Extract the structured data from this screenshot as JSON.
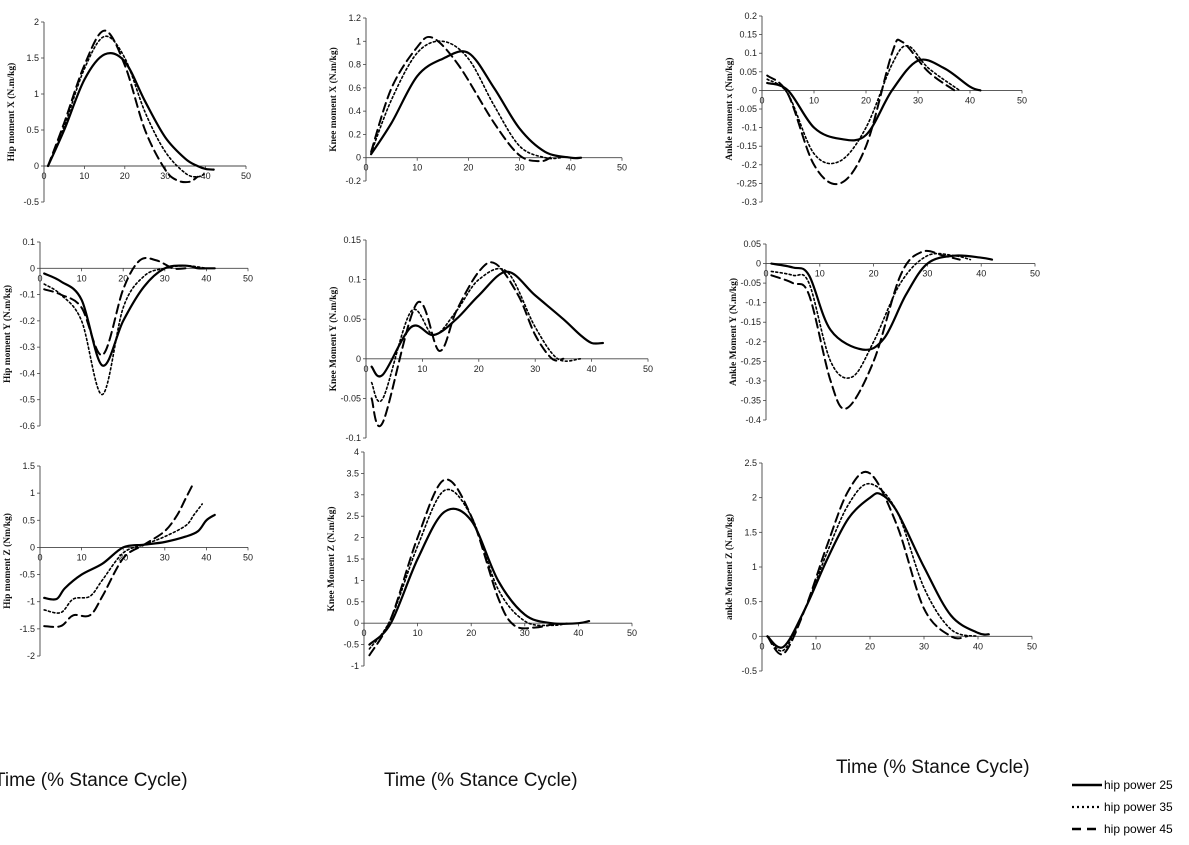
{
  "x_caption": "Time (% Stance Cycle)",
  "legend": {
    "items": [
      {
        "label": "hip power 25",
        "style": "solid"
      },
      {
        "label": "hip power 35",
        "style": "dotted"
      },
      {
        "label": "hip power 45",
        "style": "dashed"
      }
    ]
  },
  "chart_data": [
    {
      "type": "line",
      "ylabel": "Hip moment X (N.m/kg)",
      "xlim": [
        0,
        50
      ],
      "xticks": [
        0,
        10,
        20,
        30,
        40,
        50
      ],
      "ylim": [
        -0.5,
        2
      ],
      "yticks": [
        -0.5,
        0,
        0.5,
        1,
        1.5,
        2
      ],
      "series": [
        {
          "name": "hip power 25",
          "x": [
            1,
            5,
            10,
            15,
            20,
            25,
            30,
            35,
            38,
            40,
            42
          ],
          "y": [
            0,
            0.5,
            1.2,
            1.55,
            1.45,
            0.9,
            0.4,
            0.1,
            0,
            -0.04,
            -0.05
          ]
        },
        {
          "name": "hip power 35",
          "x": [
            1,
            5,
            10,
            15,
            20,
            25,
            30,
            35,
            38,
            40
          ],
          "y": [
            0,
            0.55,
            1.35,
            1.8,
            1.5,
            0.75,
            0.2,
            -0.1,
            -0.15,
            -0.1
          ]
        },
        {
          "name": "hip power 45",
          "x": [
            1,
            5,
            10,
            15,
            20,
            25,
            30,
            33,
            36,
            38
          ],
          "y": [
            0,
            0.6,
            1.4,
            1.88,
            1.4,
            0.5,
            -0.05,
            -0.2,
            -0.22,
            -0.15
          ]
        }
      ]
    },
    {
      "type": "line",
      "ylabel": "Knee moment X (N.m/kg)",
      "xlim": [
        0,
        50
      ],
      "xticks": [
        0,
        10,
        20,
        30,
        40,
        50
      ],
      "ylim": [
        -0.2,
        1.2
      ],
      "yticks": [
        -0.2,
        0,
        0.2,
        0.4,
        0.6,
        0.8,
        1,
        1.2
      ],
      "series": [
        {
          "name": "hip power 25",
          "x": [
            1,
            5,
            10,
            15,
            20,
            25,
            30,
            35,
            40,
            42
          ],
          "y": [
            0.03,
            0.3,
            0.7,
            0.85,
            0.9,
            0.6,
            0.25,
            0.05,
            0,
            0
          ]
        },
        {
          "name": "hip power 35",
          "x": [
            1,
            5,
            10,
            15,
            20,
            25,
            30,
            35,
            38
          ],
          "y": [
            0.04,
            0.5,
            0.9,
            1.0,
            0.85,
            0.45,
            0.1,
            0,
            0
          ]
        },
        {
          "name": "hip power 45",
          "x": [
            1,
            5,
            10,
            13,
            18,
            25,
            30,
            34,
            36
          ],
          "y": [
            0.05,
            0.6,
            0.95,
            1.03,
            0.8,
            0.3,
            0.02,
            -0.03,
            0
          ]
        }
      ]
    },
    {
      "type": "line",
      "ylabel": "Ankle moment x (Nm/kg)",
      "xlim": [
        0,
        50
      ],
      "xticks": [
        0,
        10,
        20,
        30,
        40,
        50
      ],
      "ylim": [
        -0.3,
        0.2
      ],
      "yticks": [
        -0.3,
        -0.25,
        -0.2,
        -0.15,
        -0.1,
        -0.05,
        0,
        0.05,
        0.1,
        0.15,
        0.2
      ],
      "series": [
        {
          "name": "hip power 25",
          "x": [
            1,
            5,
            10,
            15,
            20,
            25,
            30,
            35,
            40,
            42
          ],
          "y": [
            0.02,
            0,
            -0.1,
            -0.13,
            -0.12,
            0,
            0.08,
            0.06,
            0.01,
            0
          ]
        },
        {
          "name": "hip power 35",
          "x": [
            1,
            5,
            10,
            15,
            20,
            25,
            28,
            32,
            38
          ],
          "y": [
            0.03,
            -0.01,
            -0.17,
            -0.19,
            -0.1,
            0.07,
            0.12,
            0.06,
            0
          ]
        },
        {
          "name": "hip power 45",
          "x": [
            1,
            5,
            10,
            15,
            20,
            25,
            27,
            32,
            37
          ],
          "y": [
            0.04,
            -0.01,
            -0.2,
            -0.25,
            -0.15,
            0.1,
            0.13,
            0.05,
            0
          ]
        }
      ]
    },
    {
      "type": "line",
      "ylabel": "Hip moment Y (N.m/kg)",
      "xlim": [
        0,
        50
      ],
      "xticks": [
        0,
        10,
        20,
        30,
        40,
        50
      ],
      "ylim": [
        -0.6,
        0.1
      ],
      "yticks": [
        -0.6,
        -0.5,
        -0.4,
        -0.3,
        -0.2,
        -0.1,
        0,
        0.1
      ],
      "series": [
        {
          "name": "hip power 25",
          "x": [
            1,
            5,
            10,
            15,
            20,
            25,
            30,
            35,
            38,
            40,
            42
          ],
          "y": [
            -0.02,
            -0.05,
            -0.12,
            -0.37,
            -0.2,
            -0.07,
            0,
            0.01,
            0,
            0,
            0
          ]
        },
        {
          "name": "hip power 35",
          "x": [
            1,
            5,
            10,
            15,
            20,
            25,
            30,
            35,
            40
          ],
          "y": [
            -0.06,
            -0.1,
            -0.2,
            -0.48,
            -0.15,
            -0.03,
            0,
            0.01,
            0
          ]
        },
        {
          "name": "hip power 45",
          "x": [
            1,
            5,
            10,
            15,
            20,
            24,
            28,
            32,
            35
          ],
          "y": [
            -0.08,
            -0.1,
            -0.15,
            -0.33,
            -0.08,
            0.03,
            0.03,
            0.0,
            0
          ]
        }
      ]
    },
    {
      "type": "line",
      "ylabel": "Knee Moment Y (N.m/kg)",
      "xlim": [
        0,
        50
      ],
      "xticks": [
        0,
        10,
        20,
        30,
        40,
        50
      ],
      "ylim": [
        -0.1,
        0.15
      ],
      "yticks": [
        -0.1,
        -0.05,
        0,
        0.05,
        0.1,
        0.15
      ],
      "series": [
        {
          "name": "hip power 25",
          "x": [
            1,
            3,
            8,
            12,
            16,
            20,
            25,
            30,
            35,
            38,
            40,
            42
          ],
          "y": [
            -0.01,
            -0.02,
            0.04,
            0.03,
            0.05,
            0.08,
            0.11,
            0.08,
            0.05,
            0.03,
            0.02,
            0.02
          ]
        },
        {
          "name": "hip power 35",
          "x": [
            1,
            3,
            8,
            12,
            16,
            20,
            25,
            30,
            34,
            38
          ],
          "y": [
            -0.03,
            -0.05,
            0.06,
            0.03,
            0.06,
            0.1,
            0.11,
            0.04,
            0,
            0
          ]
        },
        {
          "name": "hip power 45",
          "x": [
            1,
            3,
            9,
            13,
            16,
            20,
            23,
            27,
            30,
            33,
            35
          ],
          "y": [
            -0.05,
            -0.08,
            0.07,
            0.01,
            0.06,
            0.11,
            0.12,
            0.08,
            0.03,
            0,
            0
          ]
        }
      ]
    },
    {
      "type": "line",
      "ylabel": "Ankle Moment Y (N.m/kg)",
      "xlim": [
        0,
        50
      ],
      "xticks": [
        0,
        10,
        20,
        30,
        40,
        50
      ],
      "ylim": [
        -0.4,
        0.05
      ],
      "yticks": [
        -0.4,
        -0.35,
        -0.3,
        -0.25,
        -0.2,
        -0.15,
        -0.1,
        -0.05,
        0,
        0.05
      ],
      "series": [
        {
          "name": "hip power 25",
          "x": [
            1,
            5,
            8,
            12,
            18,
            22,
            26,
            30,
            35,
            40,
            42
          ],
          "y": [
            0,
            -0.01,
            -0.03,
            -0.17,
            -0.22,
            -0.19,
            -0.08,
            0,
            0.02,
            0.015,
            0.01
          ]
        },
        {
          "name": "hip power 35",
          "x": [
            1,
            5,
            8,
            12,
            16,
            20,
            25,
            30,
            35,
            38
          ],
          "y": [
            -0.02,
            -0.03,
            -0.05,
            -0.25,
            -0.29,
            -0.2,
            -0.05,
            0.02,
            0.02,
            0.01
          ]
        },
        {
          "name": "hip power 45",
          "x": [
            1,
            5,
            8,
            12,
            15,
            20,
            25,
            29,
            33,
            36
          ],
          "y": [
            -0.03,
            -0.05,
            -0.08,
            -0.3,
            -0.37,
            -0.25,
            -0.03,
            0.03,
            0.02,
            0.01
          ]
        }
      ]
    },
    {
      "type": "line",
      "ylabel": "Hip moment Z (Nm/kg)",
      "xlim": [
        0,
        50
      ],
      "xticks": [
        0,
        10,
        20,
        30,
        40,
        50
      ],
      "ylim": [
        -2,
        1.5
      ],
      "yticks": [
        -2,
        -1.5,
        -1,
        -0.5,
        0,
        0.5,
        1,
        1.5
      ],
      "series": [
        {
          "name": "hip power 25",
          "x": [
            1,
            4,
            6,
            10,
            15,
            20,
            25,
            30,
            35,
            38,
            40,
            42
          ],
          "y": [
            -0.93,
            -0.95,
            -0.75,
            -0.5,
            -0.3,
            0,
            0.05,
            0.1,
            0.2,
            0.3,
            0.5,
            0.6
          ]
        },
        {
          "name": "hip power 35",
          "x": [
            1,
            5,
            8,
            12,
            15,
            20,
            25,
            30,
            35,
            37,
            39
          ],
          "y": [
            -1.15,
            -1.2,
            -0.95,
            -0.9,
            -0.6,
            -0.1,
            0.05,
            0.2,
            0.4,
            0.6,
            0.8
          ]
        },
        {
          "name": "hip power 45",
          "x": [
            1,
            5,
            8,
            12,
            15,
            20,
            25,
            30,
            33,
            35,
            37
          ],
          "y": [
            -1.45,
            -1.45,
            -1.25,
            -1.25,
            -0.9,
            -0.2,
            0.05,
            0.3,
            0.6,
            0.9,
            1.2
          ]
        }
      ]
    },
    {
      "type": "line",
      "ylabel": "Knee Moment Z (N.m/kg)",
      "xlim": [
        0,
        50
      ],
      "xticks": [
        0,
        10,
        20,
        30,
        40,
        50
      ],
      "ylim": [
        -1,
        4
      ],
      "yticks": [
        -1,
        -0.5,
        0,
        0.5,
        1,
        1.5,
        2,
        2.5,
        3,
        3.5,
        4
      ],
      "series": [
        {
          "name": "hip power 25",
          "x": [
            1,
            5,
            10,
            15,
            20,
            25,
            30,
            35,
            40,
            42
          ],
          "y": [
            -0.5,
            0,
            1.5,
            2.6,
            2.4,
            1.0,
            0.2,
            0,
            0,
            0.05
          ]
        },
        {
          "name": "hip power 35",
          "x": [
            1,
            5,
            10,
            15,
            20,
            25,
            30,
            35,
            38
          ],
          "y": [
            -0.6,
            0.1,
            1.8,
            3.1,
            2.5,
            0.8,
            0.05,
            -0.05,
            0
          ]
        },
        {
          "name": "hip power 45",
          "x": [
            1,
            5,
            10,
            15,
            20,
            25,
            28,
            32,
            36
          ],
          "y": [
            -0.75,
            0.1,
            2.0,
            3.35,
            2.5,
            0.6,
            -0.05,
            -0.1,
            0
          ]
        }
      ]
    },
    {
      "type": "line",
      "ylabel": "ankle Moment Z (N.m/kg)",
      "xlim": [
        0,
        50
      ],
      "xticks": [
        0,
        10,
        20,
        30,
        40,
        50
      ],
      "ylim": [
        -0.5,
        2.5
      ],
      "yticks": [
        -0.5,
        0,
        0.5,
        1,
        1.5,
        2,
        2.5
      ],
      "series": [
        {
          "name": "hip power 25",
          "x": [
            1,
            4,
            8,
            12,
            16,
            20,
            22,
            25,
            30,
            35,
            40,
            42
          ],
          "y": [
            0,
            -0.15,
            0.4,
            1.1,
            1.7,
            2.0,
            2.05,
            1.8,
            1.0,
            0.3,
            0.05,
            0.03
          ]
        },
        {
          "name": "hip power 35",
          "x": [
            1,
            4,
            8,
            12,
            16,
            20,
            25,
            30,
            35,
            40
          ],
          "y": [
            0,
            -0.2,
            0.4,
            1.2,
            1.9,
            2.2,
            1.8,
            0.7,
            0.1,
            0
          ]
        },
        {
          "name": "hip power 45",
          "x": [
            1,
            4,
            8,
            12,
            16,
            20,
            25,
            30,
            35,
            38
          ],
          "y": [
            0,
            -0.25,
            0.4,
            1.3,
            2.1,
            2.35,
            1.6,
            0.4,
            0,
            0
          ]
        }
      ]
    }
  ]
}
